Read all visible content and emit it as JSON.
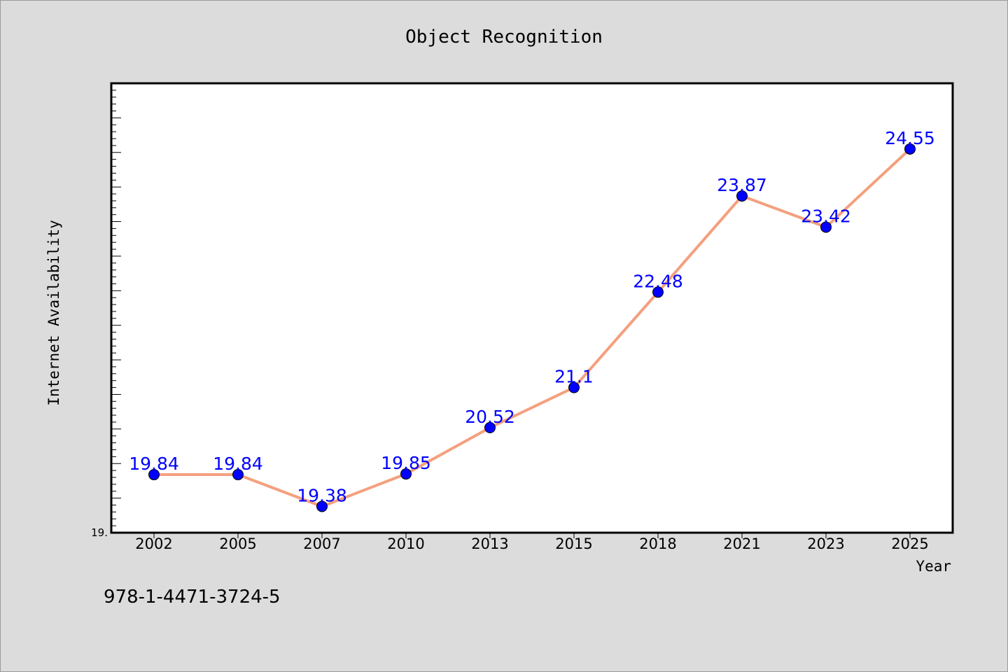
{
  "chart_data": {
    "type": "line",
    "title": "Object Recognition",
    "xlabel": "Year",
    "ylabel": "Internet Availability",
    "categories": [
      "2002",
      "2005",
      "2007",
      "2010",
      "2013",
      "2015",
      "2018",
      "2021",
      "2023",
      "2025"
    ],
    "series": [
      {
        "values": [
          19.84,
          19.84,
          19.38,
          19.85,
          20.52,
          21.1,
          22.48,
          23.87,
          23.42,
          24.55
        ],
        "data_labels": [
          "19.84",
          "19.84",
          "19.38",
          "19.85",
          "20.52",
          "21.1",
          "22.48",
          "23.87",
          "23.42",
          "24.55"
        ]
      }
    ],
    "ylim": [
      19.0,
      25.5
    ],
    "y_tick_label": "19.",
    "grid": false,
    "legend": false
  },
  "footnote": "978-1-4471-3724-5",
  "colors": {
    "background": "#dcdcdc",
    "plot_background": "#ffffff",
    "line": "#f4a07e",
    "marker": "#0000ff",
    "data_label": "#0000ff"
  }
}
